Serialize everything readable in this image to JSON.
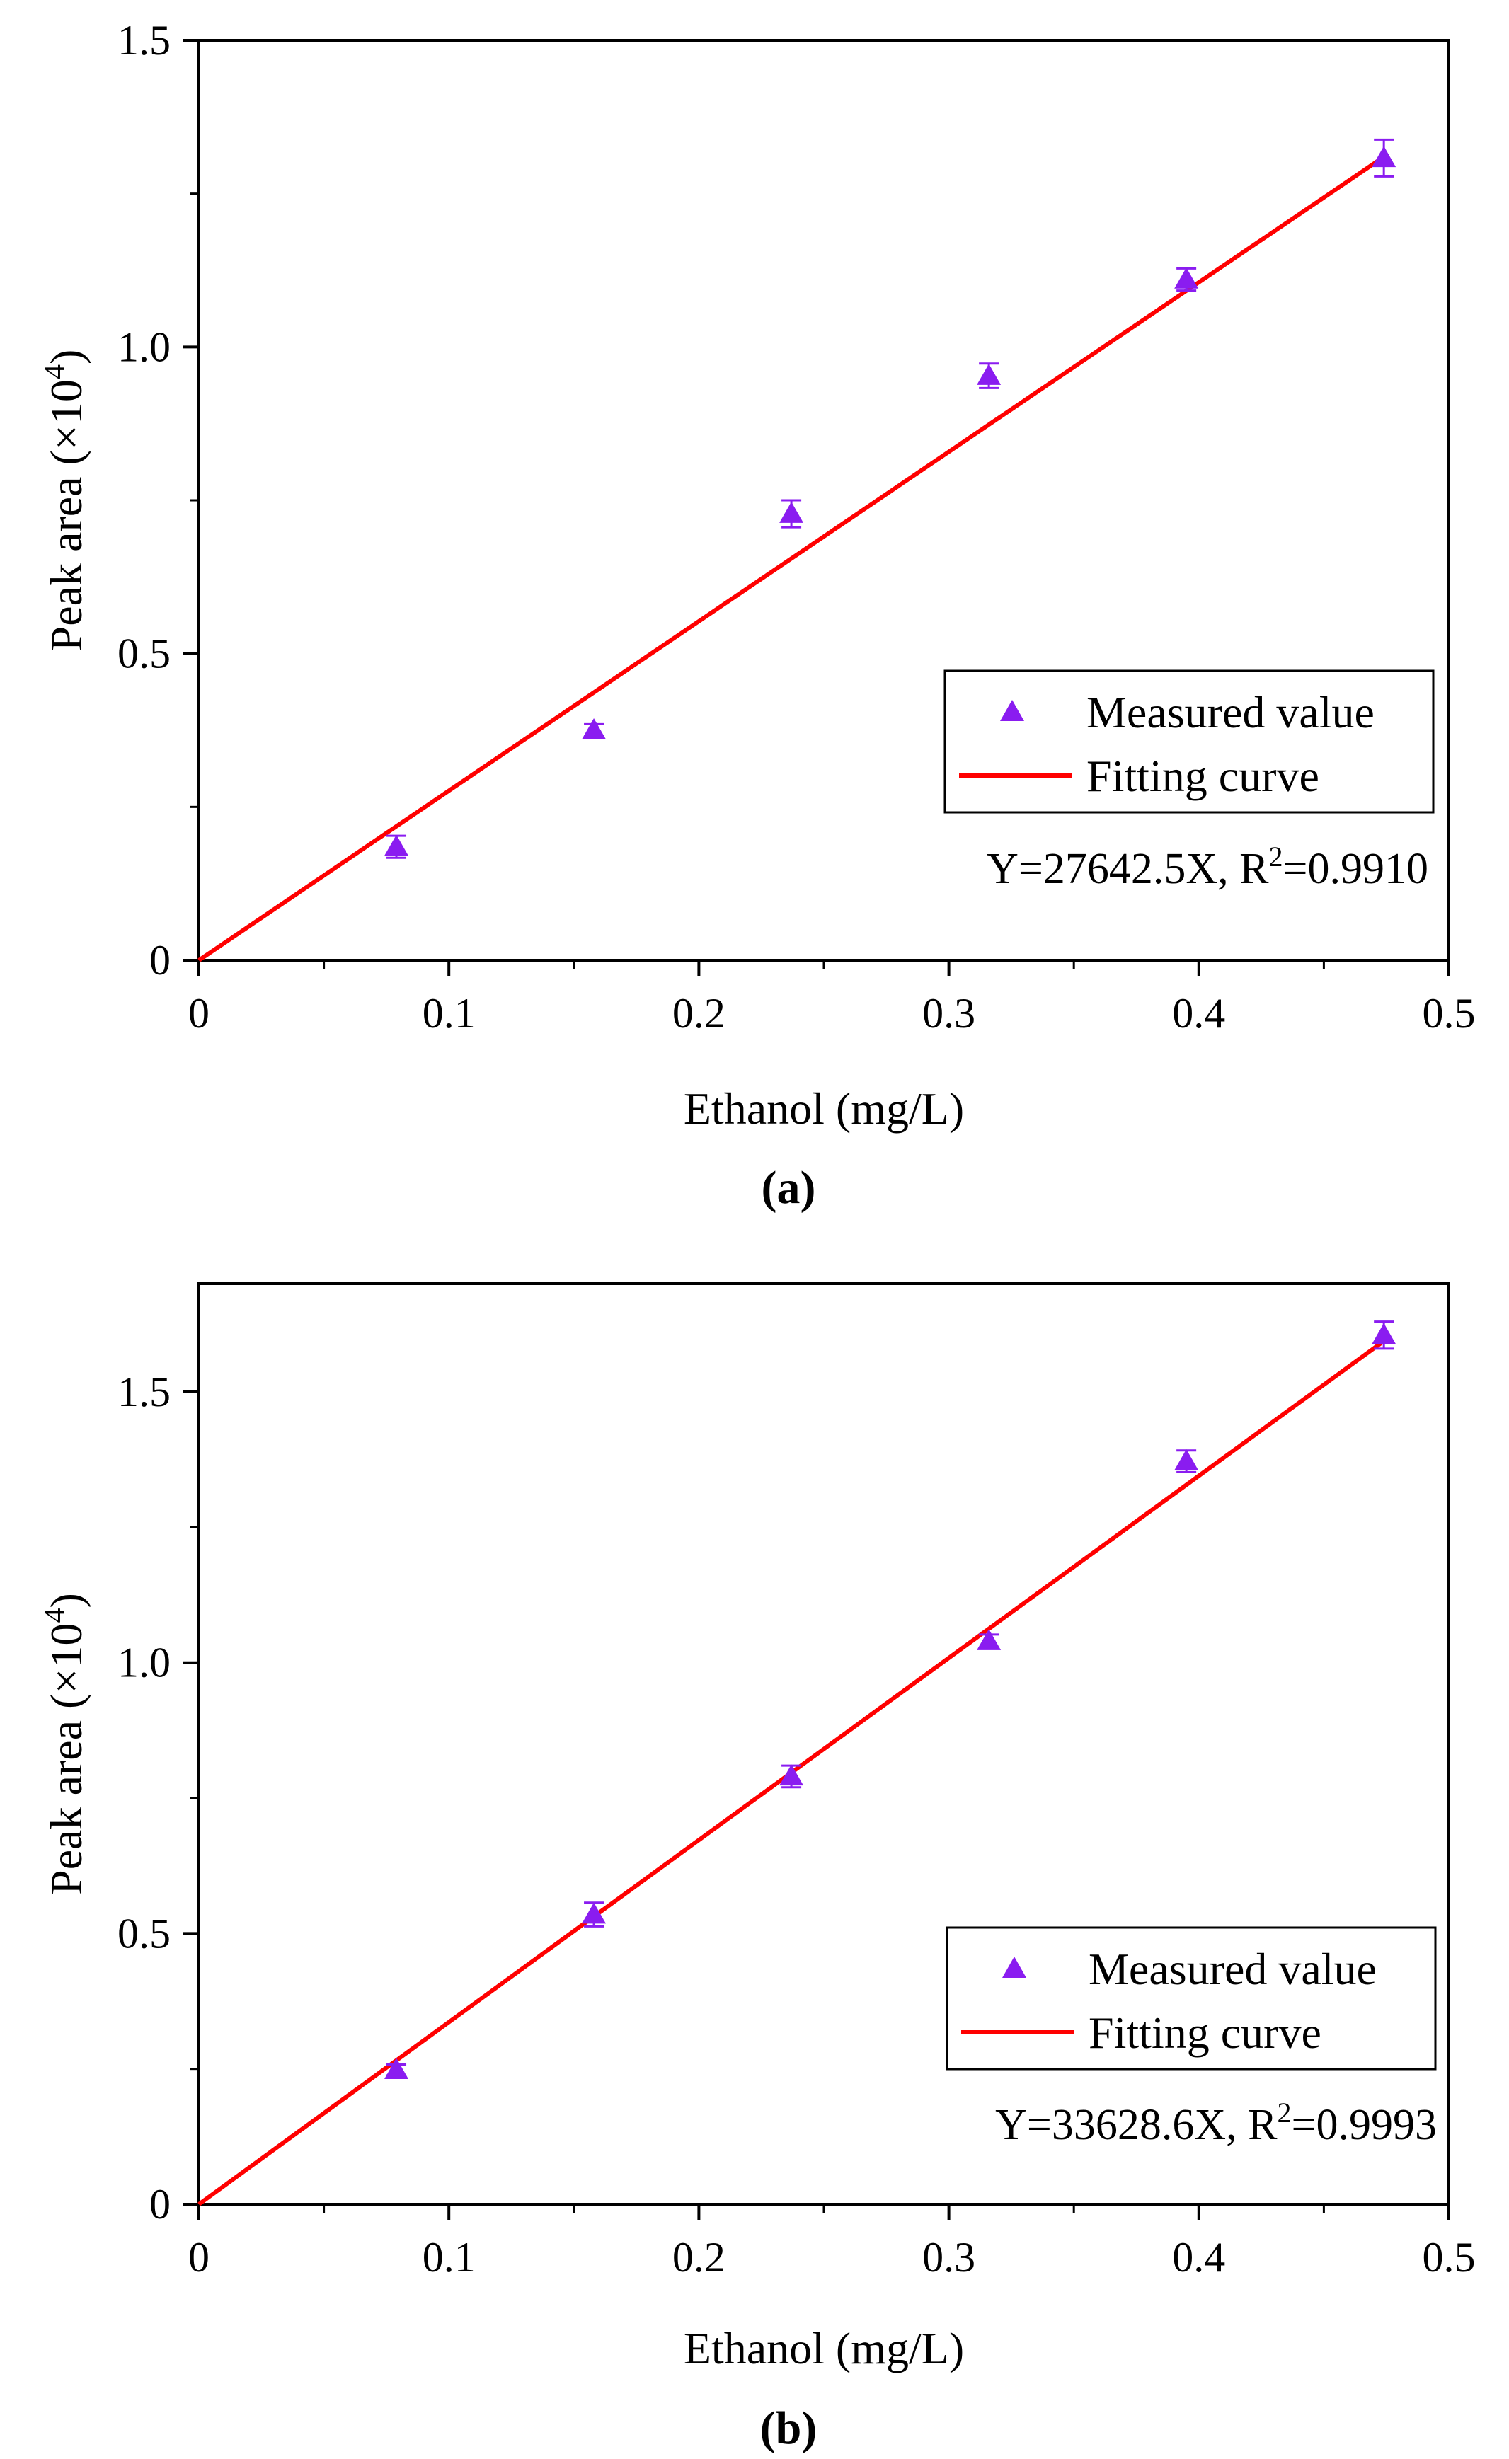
{
  "colors": {
    "marker": "#8a1cf0",
    "fit_line": "#ff0000",
    "axis": "#000000",
    "legend_border": "#000000"
  },
  "chart_data": [
    {
      "type": "scatter",
      "panel_label": "(a)",
      "xlabel": "Ethanol (mg/L)",
      "ylabel_main": "Peak area (×10",
      "ylabel_sup": "4",
      "ylabel_close": ")",
      "xlim": [
        0,
        0.5
      ],
      "ylim": [
        0,
        1.5
      ],
      "xticks": [
        0,
        0.1,
        0.2,
        0.3,
        0.4,
        0.5
      ],
      "xtick_labels": [
        "0",
        "0.1",
        "0.2",
        "0.3",
        "0.4",
        "0.5"
      ],
      "yticks": [
        0,
        0.5,
        1.0,
        1.5
      ],
      "ytick_labels": [
        "0",
        "0.5",
        "1.0",
        "1.5"
      ],
      "series": [
        {
          "name": "Measured value",
          "kind": "scatter",
          "x": [
            0.079,
            0.158,
            0.237,
            0.316,
            0.395,
            0.474
          ],
          "y": [
            0.185,
            0.375,
            0.728,
            0.953,
            1.11,
            1.308
          ],
          "yerr": [
            0.018,
            0.01,
            0.022,
            0.02,
            0.018,
            0.03
          ]
        },
        {
          "name": "Fitting curve",
          "kind": "line",
          "x": [
            0,
            0.474
          ],
          "y": [
            0,
            1.31
          ]
        }
      ],
      "equation_main": "Y=27642.5X, R",
      "equation_sup": "2",
      "equation_tail": "=0.9910",
      "legend_position": "right"
    },
    {
      "type": "scatter",
      "panel_label": "(b)",
      "xlabel": "Ethanol (mg/L)",
      "ylabel_main": "Peak area (×10",
      "ylabel_sup": "4",
      "ylabel_close": ")",
      "xlim": [
        0,
        0.5
      ],
      "ylim": [
        0,
        1.7
      ],
      "xticks": [
        0,
        0.1,
        0.2,
        0.3,
        0.4,
        0.5
      ],
      "xtick_labels": [
        "0",
        "0.1",
        "0.2",
        "0.3",
        "0.4",
        "0.5"
      ],
      "yticks": [
        0,
        0.5,
        1.0,
        1.5
      ],
      "ytick_labels": [
        "0",
        "0.5",
        "1.0",
        "1.5"
      ],
      "series": [
        {
          "name": "Measured value",
          "kind": "scatter",
          "x": [
            0.079,
            0.158,
            0.237,
            0.316,
            0.395,
            0.474
          ],
          "y": [
            0.248,
            0.535,
            0.79,
            1.04,
            1.372,
            1.605
          ],
          "yerr": [
            0.01,
            0.022,
            0.02,
            0.012,
            0.02,
            0.025
          ]
        },
        {
          "name": "Fitting curve",
          "kind": "line",
          "x": [
            0,
            0.474
          ],
          "y": [
            0,
            1.594
          ]
        }
      ],
      "equation_main": "Y=33628.6X, R",
      "equation_sup": "2",
      "equation_tail": "=0.9993",
      "legend_position": "right"
    }
  ]
}
